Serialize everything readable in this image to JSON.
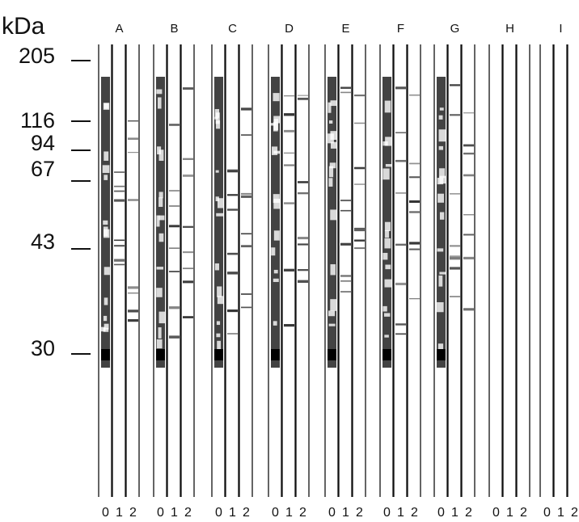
{
  "axis_unit": "kDa",
  "markers": [
    205,
    116,
    94,
    67,
    43,
    30
  ],
  "lanes": [
    {
      "label": "A",
      "samples": [
        0,
        1,
        2
      ]
    },
    {
      "label": "B",
      "samples": [
        0,
        1,
        2
      ]
    },
    {
      "label": "C",
      "samples": [
        0,
        1,
        2
      ]
    },
    {
      "label": "D",
      "samples": [
        0,
        1,
        2
      ]
    },
    {
      "label": "E",
      "samples": [
        0,
        1,
        2
      ]
    },
    {
      "label": "F",
      "samples": [
        0,
        1,
        2
      ]
    },
    {
      "label": "G",
      "samples": [
        0,
        1,
        2
      ]
    },
    {
      "label": "H",
      "samples": [
        0,
        1,
        2
      ]
    },
    {
      "label": "I",
      "samples": [
        0,
        1,
        2
      ]
    }
  ]
}
